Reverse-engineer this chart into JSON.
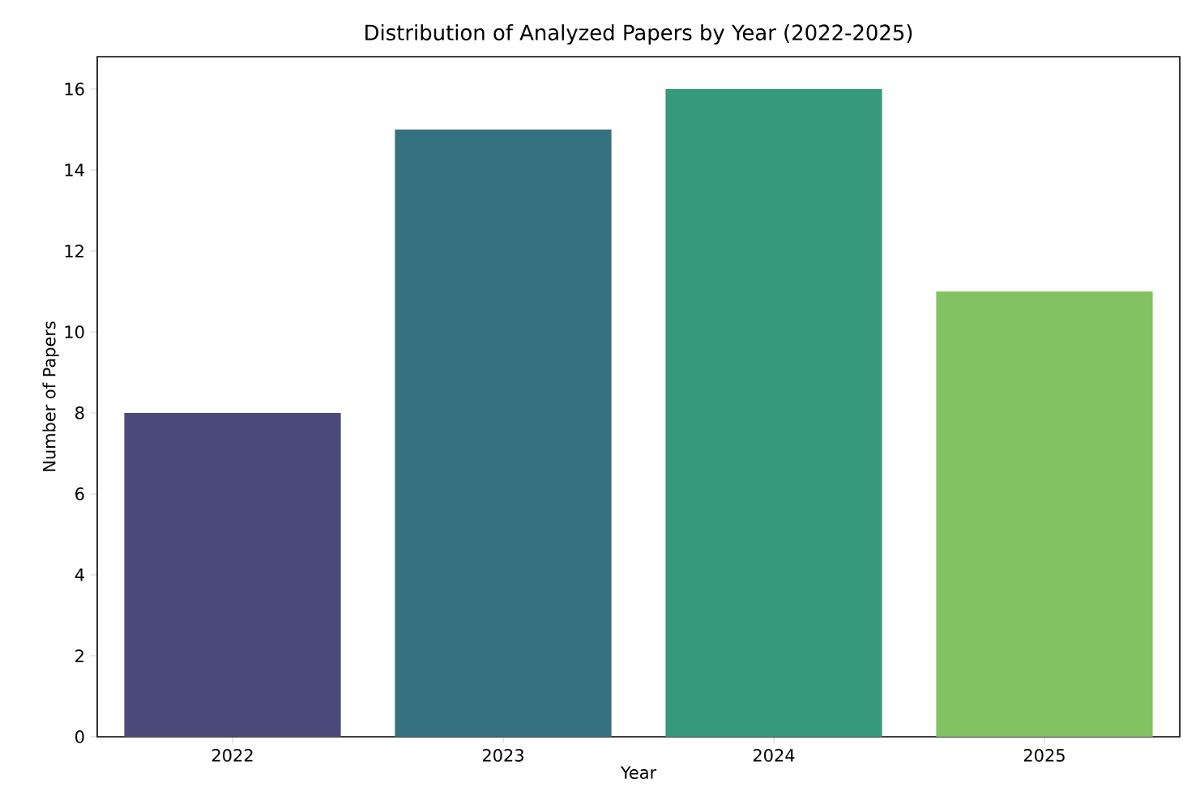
{
  "chart_data": {
    "type": "bar",
    "title": "Distribution of Analyzed Papers by Year (2022-2025)",
    "xlabel": "Year",
    "ylabel": "Number of Papers",
    "categories": [
      "2022",
      "2023",
      "2024",
      "2025"
    ],
    "values": [
      8,
      15,
      16,
      11
    ],
    "colors": [
      "#4b4a7b",
      "#357180",
      "#36997c",
      "#82c263"
    ],
    "ylim": [
      0,
      16.8
    ],
    "yticks": [
      0,
      2,
      4,
      6,
      8,
      10,
      12,
      14,
      16
    ],
    "grid": false
  }
}
